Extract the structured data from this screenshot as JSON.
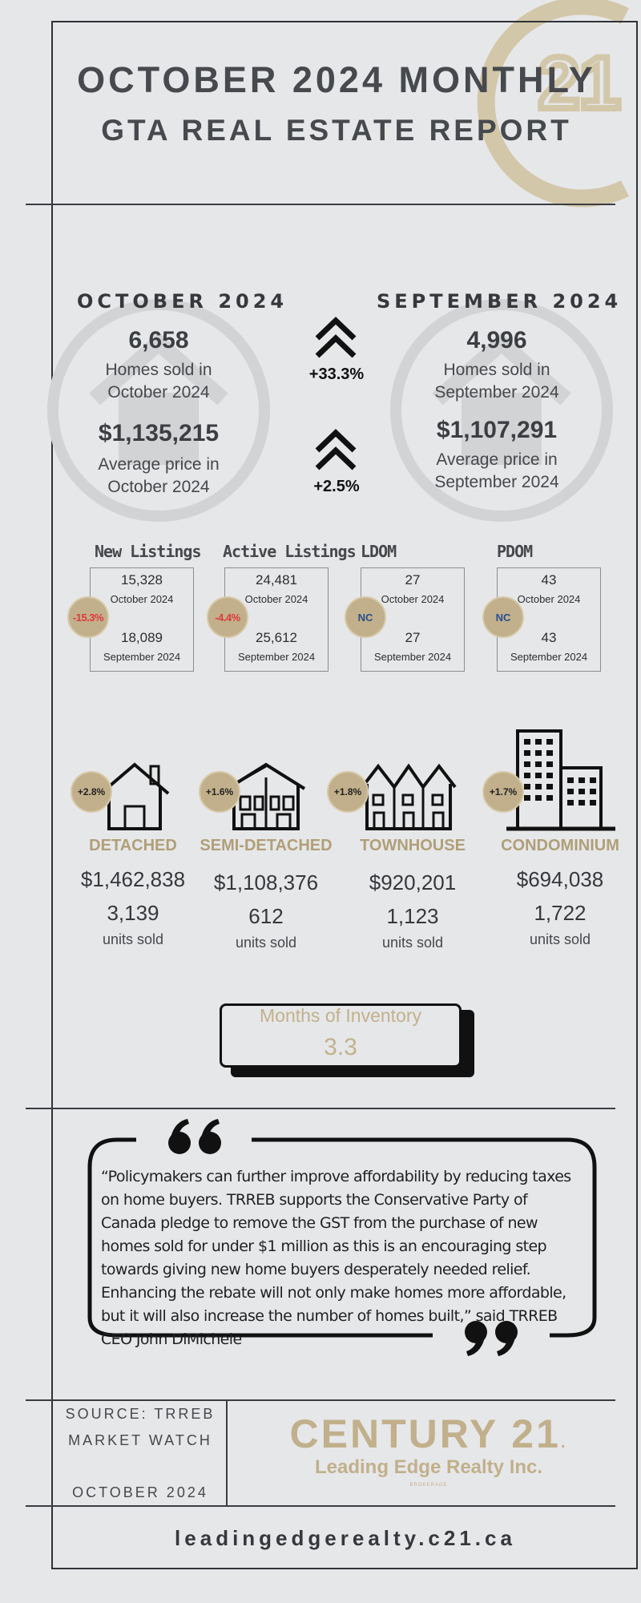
{
  "header": {
    "title_line1": "OCTOBER 2024 MONTHLY",
    "title_line2": "GTA REAL ESTATE REPORT"
  },
  "comparison": {
    "current": {
      "period": "OCTOBER 2024",
      "homes_sold": "6,658",
      "homes_sold_caption": "Homes sold in October 2024",
      "avg_price": "$1,135,215",
      "avg_price_caption": "Average price in October 2024"
    },
    "previous": {
      "period": "SEPTEMBER 2024",
      "homes_sold": "4,996",
      "homes_sold_caption": "Homes sold in September 2024",
      "avg_price": "$1,107,291",
      "avg_price_caption": "Average price in September 2024"
    },
    "homes_sold_change": "+33.3%",
    "avg_price_change": "+2.5%"
  },
  "listings": [
    {
      "label": "New Listings",
      "current_value": "15,328",
      "current_period": "October 2024",
      "previous_value": "18,089",
      "previous_period": "September 2024",
      "change": "-15.3%"
    },
    {
      "label": "Active Listings",
      "current_value": "24,481",
      "current_period": "October 2024",
      "previous_value": "25,612",
      "previous_period": "September 2024",
      "change": "-4.4%"
    },
    {
      "label": "LDOM",
      "current_value": "27",
      "current_period": "October 2024",
      "previous_value": "27",
      "previous_period": "September 2024",
      "change": "NC"
    },
    {
      "label": "PDOM",
      "current_value": "43",
      "current_period": "October 2024",
      "previous_value": "43",
      "previous_period": "September 2024",
      "change": "NC"
    }
  ],
  "property_types": [
    {
      "type": "DETACHED",
      "change": "+2.8%",
      "price": "$1,462,838",
      "units": "3,139",
      "units_label": "units sold",
      "icon": "house-icon"
    },
    {
      "type": "SEMI-DETACHED",
      "change": "+1.6%",
      "price": "$1,108,376",
      "units": "612",
      "units_label": "units sold",
      "icon": "semi-detached-icon"
    },
    {
      "type": "TOWNHOUSE",
      "change": "+1.8%",
      "price": "$920,201",
      "units": "1,123",
      "units_label": "units sold",
      "icon": "townhouse-icon"
    },
    {
      "type": "CONDOMINIUM",
      "change": "+1.7%",
      "price": "$694,038",
      "units": "1,722",
      "units_label": "units sold",
      "icon": "condo-building-icon"
    }
  ],
  "inventory": {
    "label": "Months of Inventory",
    "value": "3.3"
  },
  "quote": {
    "text": "“Policymakers can further improve affordability by reducing taxes on home buyers. TRREB supports the Conservative Party of Canada pledge to remove the GST from the purchase of new homes sold for under $1 million as this is an encouraging step towards giving new home buyers desperately needed relief. Enhancing the rebate will not only make homes more affordable, but it will also increase the number of homes built,” said TRREB CEO John DiMichele"
  },
  "footer": {
    "source_line1": "SOURCE: TRREB",
    "source_line2": "MARKET WATCH",
    "source_date": "OCTOBER 2024",
    "brand": "CENTURY 21",
    "brand_tm": ".",
    "brand_sub": "Leading Edge Realty Inc.",
    "brand_tiny": "BROKERAGE",
    "watermark_text": "21",
    "url": "leadingedgerealty.c21.ca"
  },
  "colors": {
    "gold": "#c1b08b",
    "negative": "#e0393e",
    "neutral": "#2b4d8c",
    "background": "#e6e7e9"
  }
}
